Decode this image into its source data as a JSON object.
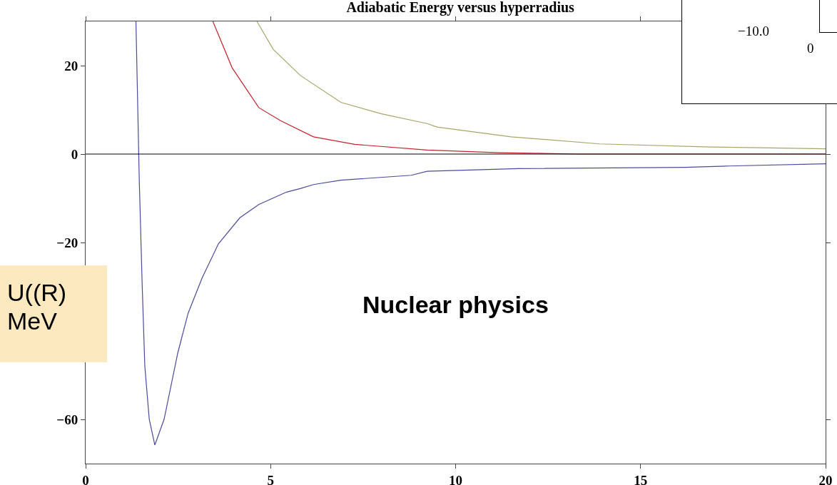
{
  "chart_data": {
    "type": "line",
    "title": "Adiabatic Energy versus hyperradius",
    "ylabel": "U((R)\nMeV",
    "annotations": [
      "Nuclear physics",
      "−10.0",
      "0"
    ],
    "series": [
      {
        "color": "#4b4b9a",
        "x": [
          1.36,
          1.45,
          1.53,
          1.6,
          1.72,
          1.87,
          2.12,
          2.49,
          2.77,
          3.15,
          3.59,
          4.17,
          4.68,
          5.43,
          5.8,
          6.16,
          6.9,
          8.8,
          9.23,
          11.7,
          16.2,
          17.4,
          20
        ],
        "values": [
          30,
          -5.9,
          -30,
          -48,
          -60,
          -65.8,
          -60,
          -45,
          -36,
          -28,
          -20.3,
          -14.4,
          -11.4,
          -8.6,
          -7.8,
          -6.9,
          -5.9,
          -4.8,
          -3.9,
          -3.3,
          -3.0,
          -2.7,
          -2.2
        ]
      },
      {
        "color": "#c0262b",
        "x": [
          3.44,
          3.96,
          4.68,
          5.28,
          6.16,
          7.27,
          9.23,
          11.2,
          13.3,
          20
        ],
        "values": [
          30,
          19.5,
          10.5,
          7.5,
          3.9,
          2.2,
          0.9,
          0.3,
          0,
          0
        ]
      },
      {
        "color": "#a6a66a",
        "x": [
          4.63,
          5.07,
          5.8,
          6.9,
          8.0,
          9.23,
          9.5,
          11.5,
          13.9,
          16.9,
          20
        ],
        "values": [
          30,
          23.7,
          17.8,
          11.7,
          9.1,
          6.9,
          6.1,
          3.9,
          2.3,
          1.6,
          1.2
        ]
      }
    ],
    "xlim": [
      0,
      20
    ],
    "xticks": [
      0,
      5,
      10,
      15,
      20
    ],
    "ylim": [
      -70,
      30
    ],
    "yticks": [
      {
        "value": 20,
        "label": "20"
      },
      {
        "value": 0,
        "label": "0"
      },
      {
        "value": -20,
        "label": "−20"
      },
      {
        "value": -60,
        "label": "−60"
      }
    ],
    "ref_lines": [
      {
        "axis": "y",
        "value": 0,
        "color": "#000000"
      }
    ],
    "marker": "none",
    "line_style": "solid"
  }
}
